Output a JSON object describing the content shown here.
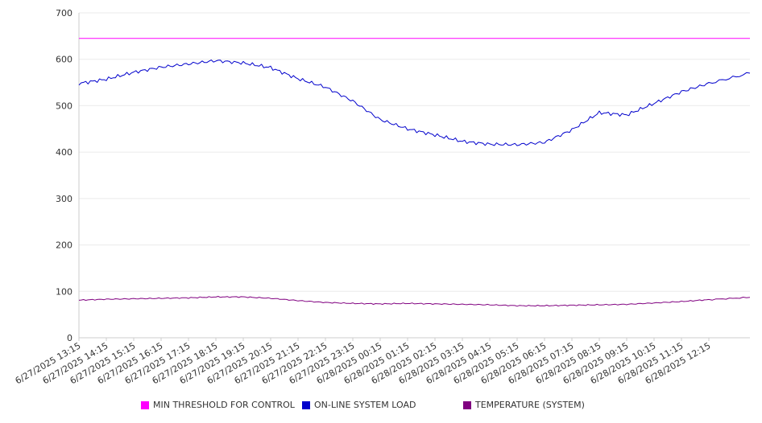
{
  "chart_data": {
    "type": "line",
    "ylim": [
      0,
      700
    ],
    "yticks": [
      0,
      100,
      200,
      300,
      400,
      500,
      600,
      700
    ],
    "xlim": [
      "6/27/2025 13:15",
      "6/28/2025 13:45"
    ],
    "grid": true,
    "legend_position": "bottom",
    "x_tick_labels": [
      "6/27/2025 13:15",
      "6/27/2025 14:15",
      "6/27/2025 15:15",
      "6/27/2025 16:15",
      "6/27/2025 17:15",
      "6/27/2025 18:15",
      "6/27/2025 19:15",
      "6/27/2025 20:15",
      "6/27/2025 21:15",
      "6/27/2025 22:15",
      "6/27/2025 23:15",
      "6/28/2025 00:15",
      "6/28/2025 01:15",
      "6/28/2025 02:15",
      "6/28/2025 03:15",
      "6/28/2025 04:15",
      "6/28/2025 05:15",
      "6/28/2025 06:15",
      "6/28/2025 07:15",
      "6/28/2025 08:15",
      "6/28/2025 09:15",
      "6/28/2025 10:15",
      "6/28/2025 11:15",
      "6/28/2025 12:15"
    ],
    "x": [
      "6/27/2025 13:15",
      "6/27/2025 14:15",
      "6/27/2025 15:15",
      "6/27/2025 16:15",
      "6/27/2025 17:15",
      "6/27/2025 18:15",
      "6/27/2025 19:15",
      "6/27/2025 20:15",
      "6/27/2025 21:15",
      "6/27/2025 22:15",
      "6/27/2025 23:15",
      "6/28/2025 00:15",
      "6/28/2025 01:15",
      "6/28/2025 02:15",
      "6/28/2025 03:15",
      "6/28/2025 04:15",
      "6/28/2025 05:15",
      "6/28/2025 06:15",
      "6/28/2025 07:15",
      "6/28/2025 08:15",
      "6/28/2025 09:15",
      "6/28/2025 10:15",
      "6/28/2025 11:15",
      "6/28/2025 12:15",
      "6/28/2025 13:45"
    ],
    "series": [
      {
        "name": "MIN THRESHOLD FOR CONTROL",
        "color": "#ff00ff",
        "values": [
          645,
          645,
          645,
          645,
          645,
          645,
          645,
          645,
          645,
          645,
          645,
          645,
          645,
          645,
          645,
          645,
          645,
          645,
          645,
          645,
          645,
          645,
          645,
          645,
          645
        ]
      },
      {
        "name": "ON-LINE SYSTEM LOAD",
        "color": "#0000cc",
        "values": [
          548,
          557,
          572,
          583,
          590,
          597,
          592,
          582,
          558,
          540,
          510,
          470,
          450,
          437,
          423,
          417,
          416,
          421,
          448,
          485,
          480,
          505,
          530,
          548,
          570
        ]
      },
      {
        "name": "TEMPERATURE (SYSTEM)",
        "color": "#800080",
        "values": [
          81,
          83,
          84,
          85,
          86,
          88,
          88,
          85,
          80,
          76,
          74,
          73,
          74,
          73,
          72,
          71,
          69,
          69,
          70,
          71,
          72,
          75,
          78,
          82,
          87
        ]
      }
    ]
  }
}
